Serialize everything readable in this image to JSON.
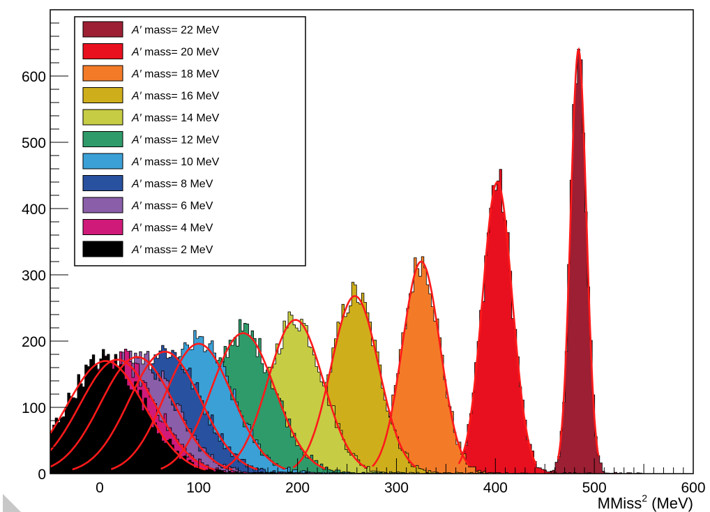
{
  "chart_data": {
    "type": "histogram",
    "title": "",
    "xlabel": "MMiss",
    "xlabel_sup": "2",
    "xlabel_unit": " (MeV)",
    "ylabel": "",
    "xlim": [
      -50,
      600
    ],
    "ylim": [
      0,
      700
    ],
    "x_ticks": [
      0,
      100,
      200,
      300,
      400,
      500,
      600
    ],
    "y_ticks": [
      0,
      100,
      200,
      300,
      400,
      500,
      600
    ],
    "grid": false,
    "legend_position": "top-left",
    "fit_color": "#ff1a1a",
    "series": [
      {
        "label": "A′ mass= 22 MeV",
        "label_prefix": "A′",
        "label_rest": " mass= 22 MeV",
        "color": "#9c1f33",
        "peak": 484,
        "sigma": 8,
        "amplitude": 640
      },
      {
        "label": "A′ mass= 20 MeV",
        "label_prefix": "A′",
        "label_rest": " mass= 20 MeV",
        "color": "#e8101f",
        "peak": 402,
        "sigma": 15,
        "amplitude": 440
      },
      {
        "label": "A′ mass= 18 MeV",
        "label_prefix": "A′",
        "label_rest": " mass= 18 MeV",
        "color": "#f37b28",
        "peak": 325,
        "sigma": 19,
        "amplitude": 320
      },
      {
        "label": "A′ mass= 16 MeV",
        "label_prefix": "A′",
        "label_rest": " mass= 16 MeV",
        "color": "#cfae1c",
        "peak": 258,
        "sigma": 24,
        "amplitude": 268
      },
      {
        "label": "A′ mass= 14 MeV",
        "label_prefix": "A′",
        "label_rest": " mass= 14 MeV",
        "color": "#c6cc44",
        "peak": 198,
        "sigma": 28,
        "amplitude": 232
      },
      {
        "label": "A′ mass= 12 MeV",
        "label_prefix": "A′",
        "label_rest": " mass= 12 MeV",
        "color": "#2f9b6a",
        "peak": 145,
        "sigma": 32,
        "amplitude": 212
      },
      {
        "label": "A′ mass= 10 MeV",
        "label_prefix": "A′",
        "label_rest": " mass= 10 MeV",
        "color": "#3ba0d6",
        "peak": 100,
        "sigma": 34,
        "amplitude": 196
      },
      {
        "label": "A′ mass= 8 MeV",
        "label_prefix": "A′",
        "label_rest": " mass= 8 MeV",
        "color": "#28519f",
        "peak": 66,
        "sigma": 36,
        "amplitude": 184
      },
      {
        "label": "A′ mass= 6 MeV",
        "label_prefix": "A′",
        "label_rest": " mass= 6 MeV",
        "color": "#8a5ea8",
        "peak": 38,
        "sigma": 37,
        "amplitude": 176
      },
      {
        "label": "A′ mass= 4 MeV",
        "label_prefix": "A′",
        "label_rest": " mass= 4 MeV",
        "color": "#d01a7a",
        "peak": 18,
        "sigma": 38,
        "amplitude": 172
      },
      {
        "label": "A′ mass= 2 MeV",
        "label_prefix": "A′",
        "label_rest": " mass= 2 MeV",
        "color": "#000000",
        "peak": 6,
        "sigma": 39,
        "amplitude": 170
      }
    ]
  }
}
